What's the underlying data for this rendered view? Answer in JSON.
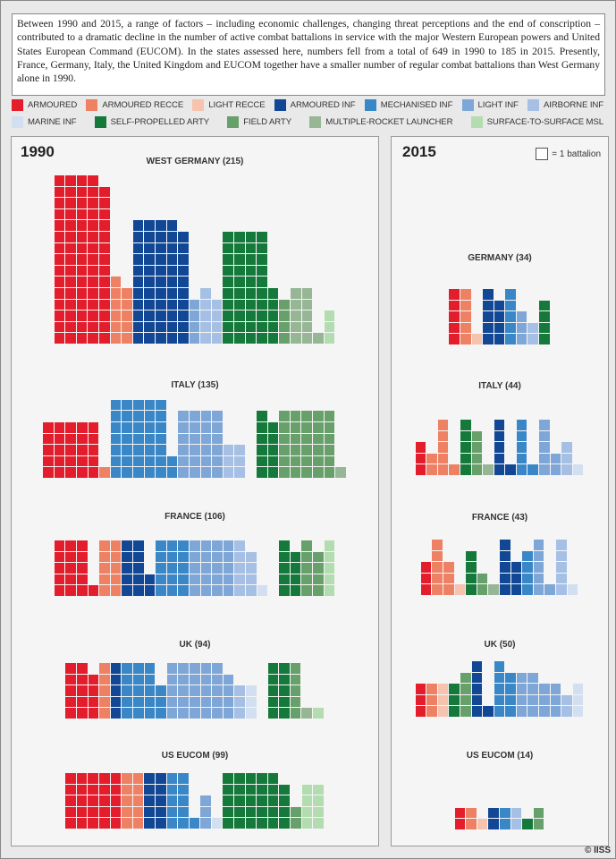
{
  "intro": "Between 1990 and 2015, a range of factors – including economic challenges, changing threat perceptions and the end of conscription – contributed to a dramatic decline in the number of active combat battalions in service with the major Western European powers and United States European Command (EUCOM). In the states assessed here, numbers fell from a total of 649 in 1990 to 185 in 2015. Presently, France, Germany, Italy, the United Kingdom and EUCOM together have a smaller number of regular combat battalions than West Germany alone in 1990.",
  "legend": [
    {
      "key": "armd",
      "label": "ARMOURED",
      "color": "#e31d2b"
    },
    {
      "key": "armdrecce",
      "label": "ARMOURED RECCE",
      "color": "#ee8163"
    },
    {
      "key": "ltrecce",
      "label": "LIGHT RECCE",
      "color": "#f6c3af"
    },
    {
      "key": "armdinf",
      "label": "ARMOURED INF",
      "color": "#114795"
    },
    {
      "key": "mechinf",
      "label": "MECHANISED INF",
      "color": "#3a87c8"
    },
    {
      "key": "ltinf",
      "label": "LIGHT INF",
      "color": "#7ea6d7"
    },
    {
      "key": "abninf",
      "label": "AIRBORNE INF",
      "color": "#a6c0e5"
    },
    {
      "key": "marinf",
      "label": "MARINE INF",
      "color": "#d2dff0"
    },
    {
      "key": "sparty",
      "label": "SELF-PROPELLED ARTY",
      "color": "#14793a"
    },
    {
      "key": "fdarty",
      "label": "FIELD ARTY",
      "color": "#67a06a"
    },
    {
      "key": "mrl",
      "label": "MULTIPLE-ROCKET LAUNCHER",
      "color": "#97b695"
    },
    {
      "key": "ssm",
      "label": "SURFACE-TO-SURFACE MSL",
      "color": "#b3dcb1"
    }
  ],
  "key_label": "= 1 battalion",
  "copyright": "© IISS",
  "chart_data": [
    {
      "type": "waffle",
      "year": "1990",
      "unit": "1 battalion per square",
      "countries": [
        {
          "title": "WEST GERMANY (215)",
          "total": 215,
          "groups": [
            {
              "cat": "armd",
              "cols": [
                15,
                15,
                15,
                15,
                14
              ]
            },
            {
              "cat": "armdrecce",
              "cols": [
                6,
                5
              ]
            },
            {
              "cat": "armdinf",
              "cols": [
                11,
                11,
                11,
                11,
                10
              ]
            },
            {
              "cat": "ltinf",
              "cols": [
                4
              ]
            },
            {
              "cat": "abninf",
              "cols": [
                5,
                4
              ]
            },
            {
              "cat": "sparty",
              "cols": [
                10,
                10,
                10,
                10,
                5
              ]
            },
            {
              "cat": "fdarty",
              "cols": [
                4
              ]
            },
            {
              "cat": "mrl",
              "cols": [
                5,
                5,
                1
              ]
            },
            {
              "cat": "ssm",
              "cols": [
                3
              ]
            }
          ]
        },
        {
          "title": "ITALY (135)",
          "total": 135,
          "groups": [
            {
              "cat": "armd",
              "cols": [
                5,
                5,
                5,
                5,
                5
              ]
            },
            {
              "cat": "armdrecce",
              "cols": [
                1
              ]
            },
            {
              "cat": "mechinf",
              "cols": [
                7,
                7,
                7,
                7,
                7,
                2
              ]
            },
            {
              "cat": "ltinf",
              "cols": [
                6,
                6,
                6,
                6
              ]
            },
            {
              "cat": "abninf",
              "cols": [
                3,
                3
              ]
            },
            {
              "cat": "gap",
              "cols": [
                0
              ]
            },
            {
              "cat": "sparty",
              "cols": [
                6,
                5
              ]
            },
            {
              "cat": "fdarty",
              "cols": [
                6,
                6,
                6,
                6,
                6
              ]
            },
            {
              "cat": "mrl",
              "cols": [
                1
              ]
            }
          ]
        },
        {
          "title": "FRANCE (106)",
          "total": 106,
          "groups": [
            {
              "cat": "armd",
              "cols": [
                5,
                5,
                5,
                1
              ]
            },
            {
              "cat": "armdrecce",
              "cols": [
                5,
                5
              ]
            },
            {
              "cat": "armdinf",
              "cols": [
                5,
                5,
                2
              ]
            },
            {
              "cat": "mechinf",
              "cols": [
                5,
                5,
                5
              ]
            },
            {
              "cat": "ltinf",
              "cols": [
                5,
                5,
                5,
                5
              ]
            },
            {
              "cat": "abninf",
              "cols": [
                5,
                4
              ]
            },
            {
              "cat": "marinf",
              "cols": [
                1
              ]
            },
            {
              "cat": "gap",
              "cols": [
                0
              ]
            },
            {
              "cat": "sparty",
              "cols": [
                5,
                4
              ]
            },
            {
              "cat": "fdarty",
              "cols": [
                5,
                4
              ]
            },
            {
              "cat": "ssm",
              "cols": [
                5
              ]
            }
          ]
        },
        {
          "title": "UK (94)",
          "total": 94,
          "groups": [
            {
              "cat": "armd",
              "cols": [
                5,
                5,
                4
              ]
            },
            {
              "cat": "armdrecce",
              "cols": [
                5
              ]
            },
            {
              "cat": "armdinf",
              "cols": [
                5
              ]
            },
            {
              "cat": "mechinf",
              "cols": [
                5,
                5,
                5,
                3
              ]
            },
            {
              "cat": "ltinf",
              "cols": [
                5,
                5,
                5,
                5,
                5,
                4
              ]
            },
            {
              "cat": "abninf",
              "cols": [
                3
              ]
            },
            {
              "cat": "marinf",
              "cols": [
                3
              ]
            },
            {
              "cat": "gap",
              "cols": [
                0
              ]
            },
            {
              "cat": "sparty",
              "cols": [
                5,
                5
              ]
            },
            {
              "cat": "fdarty",
              "cols": [
                5
              ]
            },
            {
              "cat": "mrl",
              "cols": [
                1
              ]
            },
            {
              "cat": "ssm",
              "cols": [
                1
              ]
            }
          ]
        },
        {
          "title": "US EUCOM (99)",
          "total": 99,
          "groups": [
            {
              "cat": "armd",
              "cols": [
                5,
                5,
                5,
                5,
                5
              ]
            },
            {
              "cat": "armdrecce",
              "cols": [
                5,
                5
              ]
            },
            {
              "cat": "armdinf",
              "cols": [
                5,
                5
              ]
            },
            {
              "cat": "mechinf",
              "cols": [
                5,
                5,
                1
              ]
            },
            {
              "cat": "ltinf",
              "cols": [
                3
              ]
            },
            {
              "cat": "marinf",
              "cols": [
                1
              ]
            },
            {
              "cat": "sparty",
              "cols": [
                5,
                5,
                5,
                5,
                5,
                4
              ]
            },
            {
              "cat": "fdarty",
              "cols": [
                2
              ]
            },
            {
              "cat": "ssm",
              "cols": [
                4,
                4
              ]
            }
          ]
        }
      ]
    },
    {
      "type": "waffle",
      "year": "2015",
      "unit": "1 battalion per square",
      "countries": [
        {
          "title": "GERMANY (34)",
          "total": 34,
          "groups": [
            {
              "cat": "armd",
              "cols": [
                5
              ]
            },
            {
              "cat": "armdrecce",
              "cols": [
                5
              ]
            },
            {
              "cat": "ltrecce",
              "cols": [
                1
              ]
            },
            {
              "cat": "armdinf",
              "cols": [
                5,
                4
              ]
            },
            {
              "cat": "mechinf",
              "cols": [
                5
              ]
            },
            {
              "cat": "ltinf",
              "cols": [
                3
              ]
            },
            {
              "cat": "abninf",
              "cols": [
                2
              ]
            },
            {
              "cat": "sparty",
              "cols": [
                4
              ]
            }
          ]
        },
        {
          "title": "ITALY (44)",
          "total": 44,
          "groups": [
            {
              "cat": "armd",
              "cols": [
                3
              ]
            },
            {
              "cat": "armdrecce",
              "cols": [
                2,
                5,
                1
              ]
            },
            {
              "cat": "sparty",
              "cols": [
                5
              ]
            },
            {
              "cat": "fdarty",
              "cols": [
                4
              ]
            },
            {
              "cat": "mrl",
              "cols": [
                1
              ]
            },
            {
              "cat": "armdinf",
              "cols": [
                5,
                1
              ]
            },
            {
              "cat": "mechinf",
              "cols": [
                5,
                1
              ]
            },
            {
              "cat": "ltinf",
              "cols": [
                5,
                2
              ]
            },
            {
              "cat": "abninf",
              "cols": [
                3
              ]
            },
            {
              "cat": "marinf",
              "cols": [
                1
              ]
            }
          ]
        },
        {
          "title": "FRANCE (43)",
          "total": 43,
          "groups": [
            {
              "cat": "armd",
              "cols": [
                3
              ]
            },
            {
              "cat": "armdrecce",
              "cols": [
                5,
                3
              ]
            },
            {
              "cat": "ltrecce",
              "cols": [
                1
              ]
            },
            {
              "cat": "sparty",
              "cols": [
                4
              ]
            },
            {
              "cat": "fdarty",
              "cols": [
                2
              ]
            },
            {
              "cat": "mrl",
              "cols": [
                1
              ]
            },
            {
              "cat": "armdinf",
              "cols": [
                5,
                3
              ]
            },
            {
              "cat": "mechinf",
              "cols": [
                4
              ]
            },
            {
              "cat": "ltinf",
              "cols": [
                5,
                1
              ]
            },
            {
              "cat": "abninf",
              "cols": [
                5
              ]
            },
            {
              "cat": "marinf",
              "cols": [
                1
              ]
            }
          ]
        },
        {
          "title": "UK (50)",
          "total": 50,
          "groups": [
            {
              "cat": "armd",
              "cols": [
                3
              ]
            },
            {
              "cat": "armdrecce",
              "cols": [
                3
              ]
            },
            {
              "cat": "ltrecce",
              "cols": [
                3
              ]
            },
            {
              "cat": "sparty",
              "cols": [
                3
              ]
            },
            {
              "cat": "fdarty",
              "cols": [
                4
              ]
            },
            {
              "cat": "armdinf",
              "cols": [
                5,
                1
              ]
            },
            {
              "cat": "mechinf",
              "cols": [
                5,
                4
              ]
            },
            {
              "cat": "ltinf",
              "cols": [
                4,
                4,
                3,
                3
              ]
            },
            {
              "cat": "abninf",
              "cols": [
                2
              ]
            },
            {
              "cat": "marinf",
              "cols": [
                3
              ]
            }
          ]
        },
        {
          "title": "US EUCOM (14)",
          "total": 14,
          "groups": [
            {
              "cat": "armd",
              "cols": [
                2
              ]
            },
            {
              "cat": "armdrecce",
              "cols": [
                2
              ]
            },
            {
              "cat": "ltrecce",
              "cols": [
                1
              ]
            },
            {
              "cat": "armdinf",
              "cols": [
                2
              ]
            },
            {
              "cat": "mechinf",
              "cols": [
                2
              ]
            },
            {
              "cat": "abninf",
              "cols": [
                2
              ]
            },
            {
              "cat": "sparty",
              "cols": [
                1
              ]
            },
            {
              "cat": "fdarty",
              "cols": [
                2
              ]
            }
          ]
        }
      ]
    }
  ]
}
